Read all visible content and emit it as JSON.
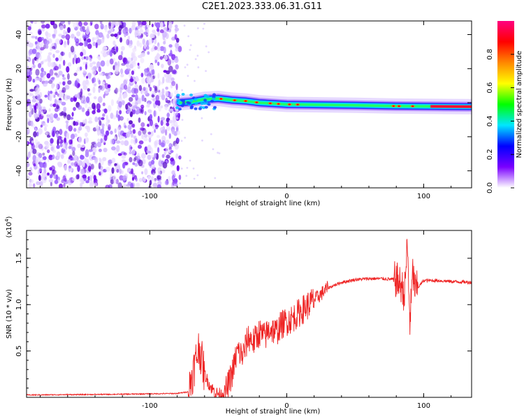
{
  "title": "C2E1.2023.333.06.31.G11",
  "chart_data": [
    {
      "type": "heatmap",
      "xlabel": "Height of straight line (km)",
      "ylabel": "Frequency (Hz)",
      "xlim": [
        -190,
        135
      ],
      "ylim": [
        -50,
        48
      ],
      "x_ticks": [
        -100,
        0,
        100
      ],
      "y_ticks": [
        -40,
        -20,
        0,
        20,
        40
      ],
      "colorbar": {
        "label": "Normalized spectral amplitude",
        "range": [
          0,
          1
        ],
        "ticks": [
          0.0,
          0.2,
          0.4,
          0.6,
          0.8
        ],
        "tick_labels": [
          "0.0",
          "0.2",
          "0.4",
          "0.6",
          "0.8"
        ],
        "colors": [
          "#ffffff",
          "#7a00ff",
          "#0000ff",
          "#00e6ff",
          "#00ff00",
          "#ffff00",
          "#ff8800",
          "#ff0000",
          "#ff0080"
        ]
      },
      "noise_region_x": [
        -190,
        -78
      ],
      "track": [
        {
          "x": -78,
          "y": 0.0
        },
        {
          "x": -70,
          "y": 0.5
        },
        {
          "x": -60,
          "y": 2.0
        },
        {
          "x": -50,
          "y": 2.5
        },
        {
          "x": -40,
          "y": 1.5
        },
        {
          "x": -30,
          "y": 1.0
        },
        {
          "x": -20,
          "y": 0.0
        },
        {
          "x": -10,
          "y": -0.5
        },
        {
          "x": 0,
          "y": -1.0
        },
        {
          "x": 20,
          "y": -1.2
        },
        {
          "x": 50,
          "y": -1.5
        },
        {
          "x": 80,
          "y": -2.0
        },
        {
          "x": 110,
          "y": -2.2
        },
        {
          "x": 135,
          "y": -2.3
        }
      ]
    },
    {
      "type": "line",
      "xlabel": "Height of straight line (km)",
      "ylabel": "SNR (10 * v/v)",
      "y_exponent_label": "(x10",
      "y_exponent_power": "4",
      "y_exponent_close": ")",
      "xlim": [
        -190,
        135
      ],
      "ylim": [
        0,
        18000
      ],
      "x_ticks": [
        -100,
        0,
        100
      ],
      "y_ticks": [
        5000,
        10000,
        15000
      ],
      "y_tick_labels": [
        "0.5",
        "1.0",
        "1.5"
      ],
      "color": "#ee2222",
      "x": [
        -190,
        -170,
        -150,
        -130,
        -110,
        -90,
        -80,
        -72,
        -68,
        -64,
        -60,
        -56,
        -52,
        -48,
        -44,
        -40,
        -36,
        -32,
        -28,
        -24,
        -20,
        -16,
        -12,
        -8,
        -4,
        0,
        4,
        8,
        12,
        16,
        20,
        24,
        30,
        40,
        50,
        60,
        70,
        80,
        84,
        86,
        88,
        90,
        92,
        94,
        100,
        110,
        120,
        135
      ],
      "y": [
        250,
        280,
        300,
        320,
        360,
        400,
        420,
        600,
        3000,
        5500,
        2500,
        1200,
        500,
        300,
        800,
        2500,
        5000,
        4500,
        6500,
        6000,
        7000,
        6500,
        7500,
        7000,
        7800,
        8200,
        8500,
        9000,
        9500,
        10000,
        10500,
        11000,
        11800,
        12400,
        12700,
        12800,
        12800,
        12700,
        12000,
        11000,
        16500,
        8000,
        13500,
        11500,
        12600,
        12600,
        12500,
        12400
      ]
    }
  ]
}
